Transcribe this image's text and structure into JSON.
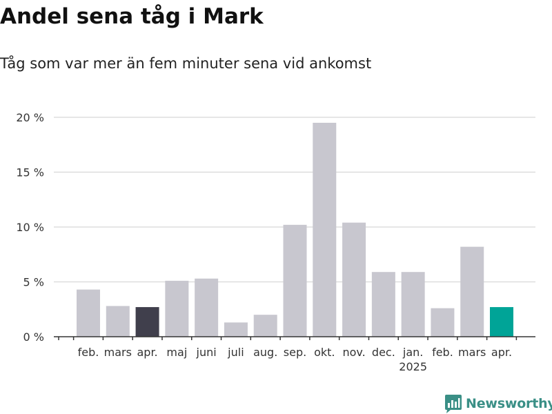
{
  "header": {
    "title": "Andel sena tåg i Mark",
    "subtitle": "Tåg som var mer än fem minuter sena vid ankomst"
  },
  "brand": {
    "name": "Newsworthy",
    "color": "#3a8f86"
  },
  "colors": {
    "bar_default": "#c8c7cf",
    "bar_prev_year": "#403f4c",
    "bar_latest": "#00a497",
    "grid": "#dddddd",
    "axis": "#333333"
  },
  "chart_data": {
    "type": "bar",
    "title": "Andel sena tåg i Mark",
    "subtitle": "Tåg som var mer än fem minuter sena vid ankomst",
    "categories": [
      "feb.",
      "mars",
      "apr.",
      "maj",
      "juni",
      "juli",
      "aug.",
      "sep.",
      "okt.",
      "nov.",
      "dec.",
      "jan.",
      "feb.",
      "mars",
      "apr."
    ],
    "year_labels": [
      {
        "index": 11,
        "label": "2025"
      }
    ],
    "values": [
      4.3,
      2.8,
      2.7,
      5.1,
      5.3,
      1.3,
      2.0,
      10.2,
      19.5,
      10.4,
      5.9,
      5.9,
      2.6,
      8.2,
      2.7
    ],
    "highlight": {
      "2": "bar_prev_year",
      "14": "bar_latest"
    },
    "unit": "%",
    "yticks": [
      0,
      5,
      10,
      15,
      20
    ],
    "ytick_labels": [
      "0 %",
      "5 %",
      "10 %",
      "15 %",
      "20 %"
    ],
    "ylim": [
      0,
      20
    ],
    "grid": true,
    "legend": "none"
  }
}
